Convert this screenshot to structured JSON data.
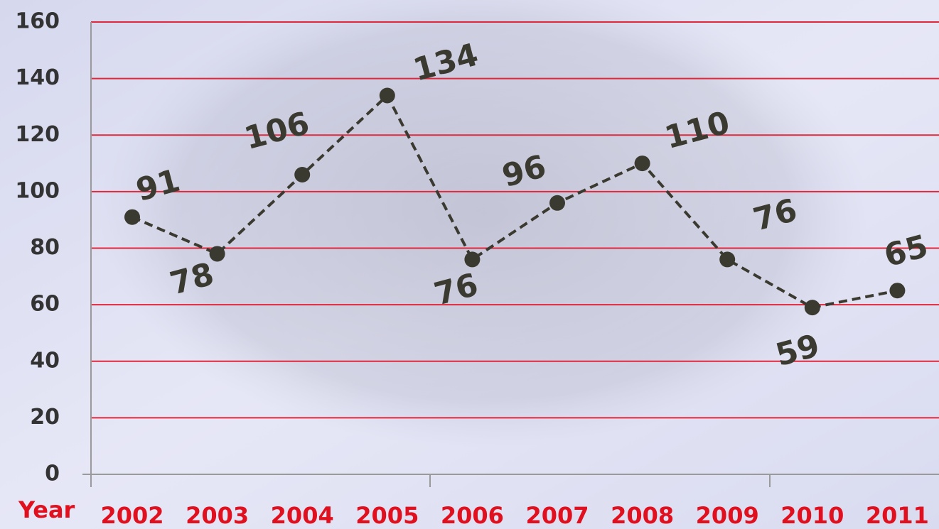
{
  "chart_data": {
    "type": "line",
    "x_label": "Year",
    "categories": [
      "2002",
      "2003",
      "2004",
      "2005",
      "2006",
      "2007",
      "2008",
      "2009",
      "2010",
      "2011"
    ],
    "series": [
      {
        "color": "#3b3a30",
        "values": [
          91,
          78,
          106,
          134,
          76,
          96,
          110,
          76,
          59,
          65
        ]
      }
    ],
    "ylim": [
      0,
      160
    ],
    "yticks": [
      0,
      20,
      40,
      60,
      80,
      100,
      120,
      140,
      160
    ],
    "grid": true,
    "grid_color": "#e0283c",
    "category_label_color": "#e0101e",
    "data_labels": true
  }
}
